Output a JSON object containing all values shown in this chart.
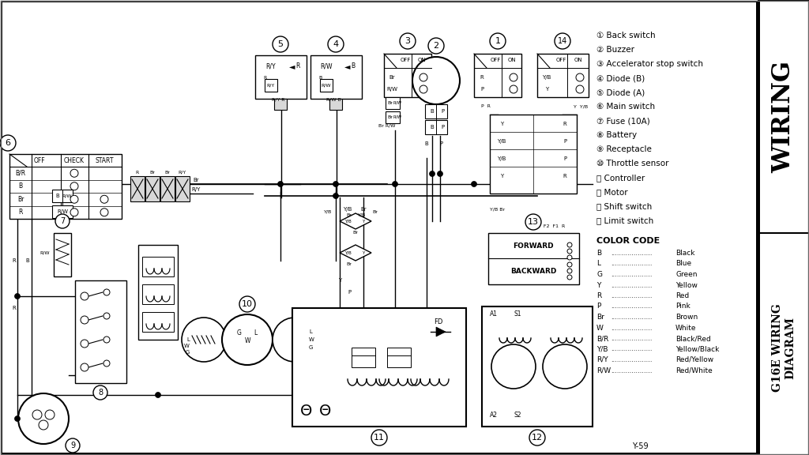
{
  "bg_color": "#f0f0f0",
  "white": "#ffffff",
  "black": "#000000",
  "gray_light": "#d8d8d8",
  "gray_mid": "#c0c0c0",
  "component_labels": [
    "① Back switch",
    "② Buzzer",
    "③ Accelerator stop switch",
    "④ Diode (B)",
    "⑤ Diode (A)",
    "⑥ Main switch",
    "⑦ Fuse (10A)",
    "⑧ Battery",
    "⑨ Receptacle",
    "⑩ Throttle sensor",
    "⑪ Controller",
    "⑫ Motor",
    "⑬ Shift switch",
    "⑭ Limit switch"
  ],
  "color_codes": [
    [
      "B",
      "Black"
    ],
    [
      "L",
      "Blue"
    ],
    [
      "G",
      "Green"
    ],
    [
      "Y",
      "Yellow"
    ],
    [
      "R",
      "Red"
    ],
    [
      "P",
      "Pink"
    ],
    [
      "Br",
      "Brown"
    ],
    [
      "W",
      "White"
    ],
    [
      "B/R",
      "Black/Red"
    ],
    [
      "Y/B",
      "Yellow/Black"
    ],
    [
      "R/Y",
      "Red/Yellow"
    ],
    [
      "R/W",
      "Red/White"
    ]
  ],
  "sidebar_title_top": "WIRING",
  "sidebar_title_bot": "G16E WIRING DIAGRAM",
  "page_ref": "Y-59"
}
